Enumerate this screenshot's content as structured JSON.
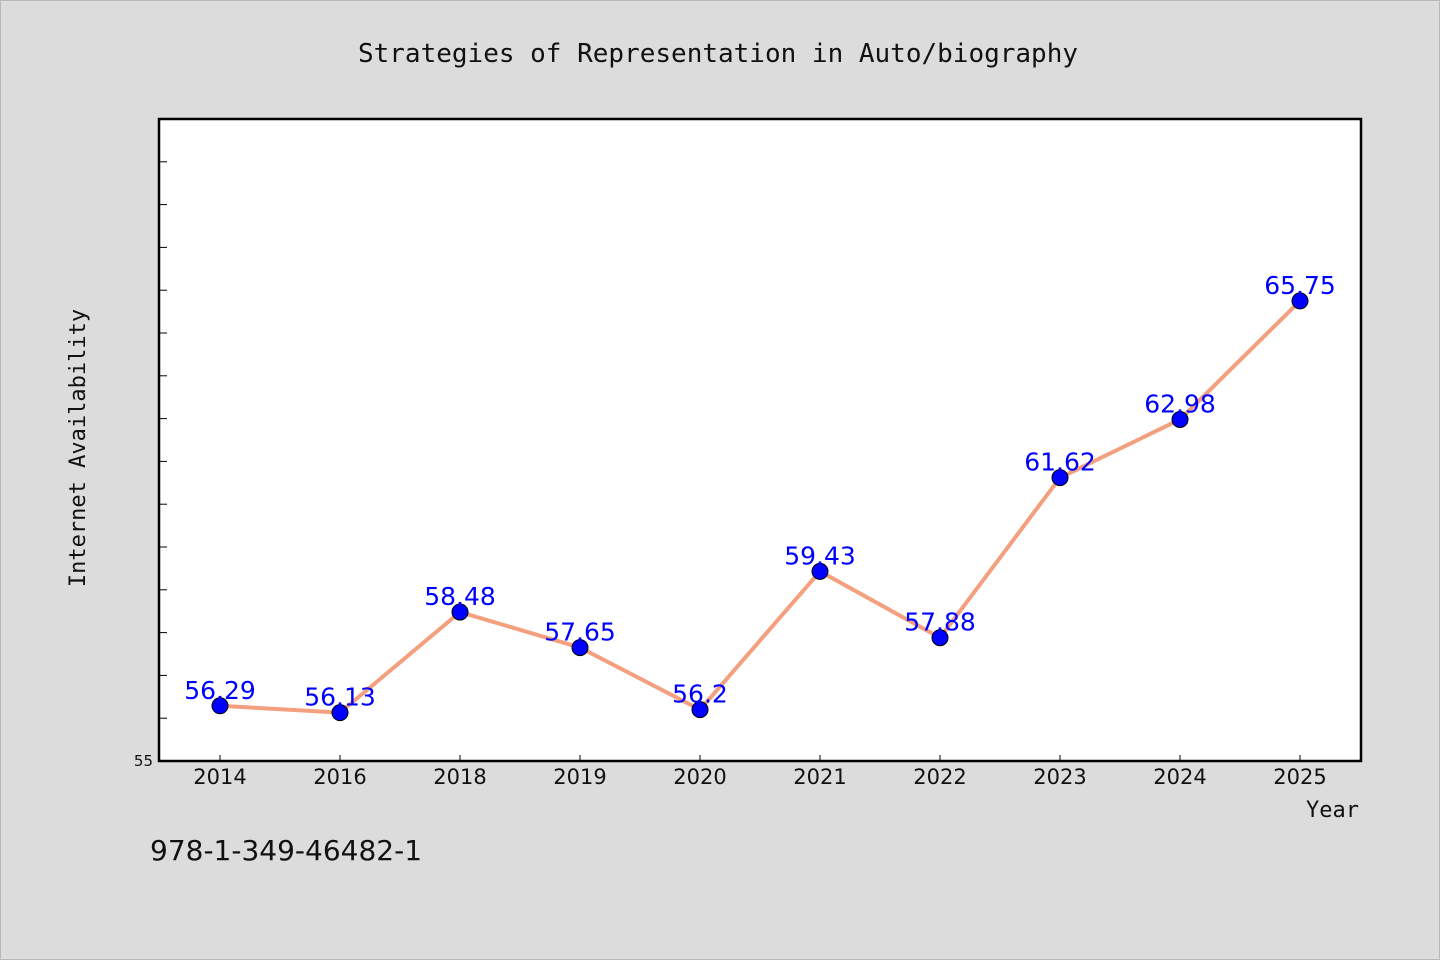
{
  "chart_data": {
    "type": "line",
    "title": "Strategies of Representation in Auto/biography",
    "xlabel": "Year",
    "ylabel": "Internet Availability",
    "categories": [
      "2014",
      "2016",
      "2018",
      "2019",
      "2020",
      "2021",
      "2022",
      "2023",
      "2024",
      "2025"
    ],
    "series": [
      {
        "values": [
          56.29,
          56.13,
          58.48,
          57.65,
          56.2,
          59.43,
          57.88,
          61.62,
          62.98,
          65.75
        ],
        "labels": [
          "56.29",
          "56.13",
          "58.48",
          "57.65",
          "56.2",
          "59.43",
          "57.88",
          "61.62",
          "62.98",
          "65.75"
        ],
        "line_color": "#f4a07f",
        "marker_color": "#0000ff",
        "label_color": "#0000ff"
      }
    ],
    "ylim": [
      55,
      70
    ],
    "yticks_labeled": [
      "55"
    ],
    "grid": false,
    "legend": "none"
  },
  "footer": {
    "isbn": "978-1-349-46482-1"
  }
}
